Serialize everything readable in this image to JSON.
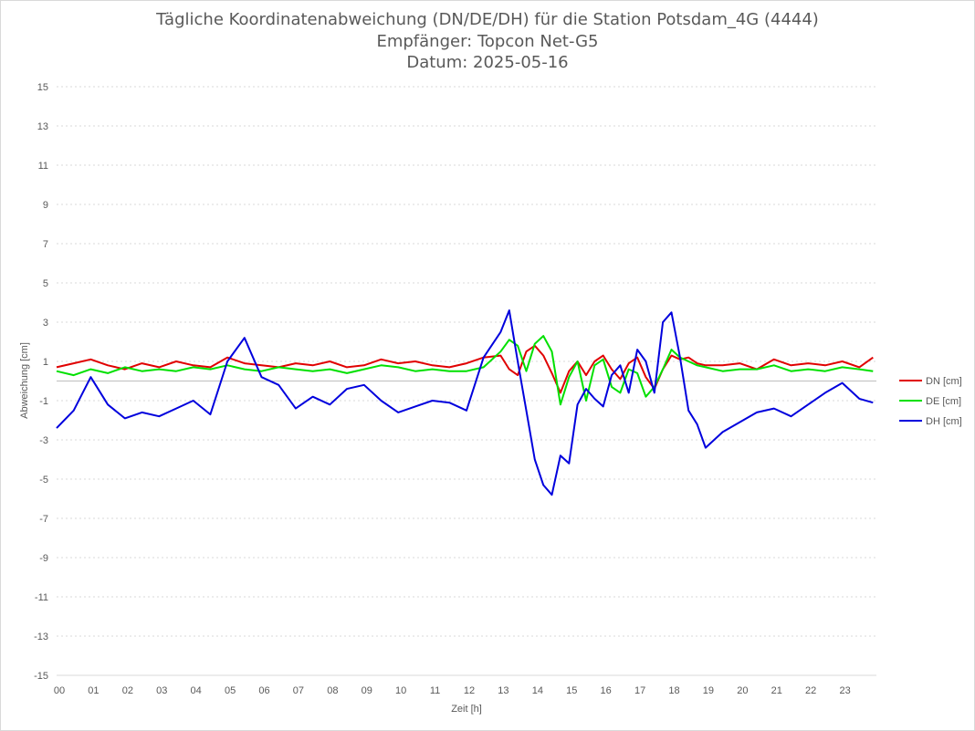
{
  "chart_data": {
    "type": "line",
    "title": "Tägliche Koordinatenabweichung (DN/DE/DH) für die Station Potsdam_4G (4444)",
    "subtitle1": "Empfänger: Topcon Net-G5",
    "subtitle2": "Datum: 2025-05-16",
    "xlabel": "Zeit [h]",
    "ylabel": "Abweichung [cm]",
    "xlim": [
      0,
      24
    ],
    "ylim": [
      -15,
      15
    ],
    "x_ticks": [
      "00",
      "01",
      "02",
      "03",
      "04",
      "05",
      "06",
      "07",
      "08",
      "09",
      "10",
      "11",
      "12",
      "13",
      "14",
      "15",
      "16",
      "17",
      "18",
      "19",
      "20",
      "21",
      "22",
      "23"
    ],
    "y_ticks": [
      15,
      13,
      11,
      9,
      7,
      5,
      3,
      1,
      -1,
      -3,
      -5,
      -7,
      -9,
      -11,
      -13,
      -15
    ],
    "grid": "horizontal dotted",
    "legend_position": "right",
    "x": [
      0,
      0.5,
      1,
      1.5,
      2,
      2.5,
      3,
      3.5,
      4,
      4.5,
      5,
      5.5,
      6,
      6.5,
      7,
      7.5,
      8,
      8.5,
      9,
      9.5,
      10,
      10.5,
      11,
      11.5,
      12,
      12.5,
      13,
      13.25,
      13.5,
      13.75,
      14,
      14.25,
      14.5,
      14.75,
      15,
      15.25,
      15.5,
      15.75,
      16,
      16.25,
      16.5,
      16.75,
      17,
      17.25,
      17.5,
      17.75,
      18,
      18.25,
      18.5,
      18.75,
      19,
      19.5,
      20,
      20.5,
      21,
      21.5,
      22,
      22.5,
      23,
      23.5,
      23.9
    ],
    "series": [
      {
        "name": "DN [cm]",
        "color": "#e00000",
        "values": [
          0.7,
          0.9,
          1.1,
          0.8,
          0.6,
          0.9,
          0.7,
          1.0,
          0.8,
          0.7,
          1.2,
          0.9,
          0.8,
          0.7,
          0.9,
          0.8,
          1.0,
          0.7,
          0.8,
          1.1,
          0.9,
          1.0,
          0.8,
          0.7,
          0.9,
          1.2,
          1.3,
          0.6,
          0.3,
          1.5,
          1.8,
          1.3,
          0.4,
          -0.6,
          0.5,
          1.0,
          0.3,
          1.0,
          1.3,
          0.6,
          0.1,
          0.9,
          1.2,
          0.2,
          -0.4,
          0.6,
          1.3,
          1.1,
          1.2,
          0.9,
          0.8,
          0.8,
          0.9,
          0.6,
          1.1,
          0.8,
          0.9,
          0.8,
          1.0,
          0.7,
          1.2
        ]
      },
      {
        "name": "DE [cm]",
        "color": "#00e000",
        "values": [
          0.5,
          0.3,
          0.6,
          0.4,
          0.7,
          0.5,
          0.6,
          0.5,
          0.7,
          0.6,
          0.8,
          0.6,
          0.5,
          0.7,
          0.6,
          0.5,
          0.6,
          0.4,
          0.6,
          0.8,
          0.7,
          0.5,
          0.6,
          0.5,
          0.5,
          0.7,
          1.5,
          2.1,
          1.8,
          0.5,
          1.9,
          2.3,
          1.5,
          -1.2,
          0.2,
          1.0,
          -1.0,
          0.8,
          1.1,
          -0.3,
          -0.6,
          0.6,
          0.4,
          -0.8,
          -0.3,
          0.6,
          1.6,
          1.2,
          1.0,
          0.8,
          0.7,
          0.5,
          0.6,
          0.6,
          0.8,
          0.5,
          0.6,
          0.5,
          0.7,
          0.6,
          0.5
        ]
      },
      {
        "name": "DH [cm]",
        "color": "#0000dd",
        "values": [
          -2.4,
          -1.5,
          0.2,
          -1.2,
          -1.9,
          -1.6,
          -1.8,
          -1.4,
          -1.0,
          -1.7,
          1.0,
          2.2,
          0.2,
          -0.2,
          -1.4,
          -0.8,
          -1.2,
          -0.4,
          -0.2,
          -1.0,
          -1.6,
          -1.3,
          -1.0,
          -1.1,
          -1.5,
          1.2,
          2.5,
          3.6,
          1.0,
          -1.5,
          -4.0,
          -5.3,
          -5.8,
          -3.8,
          -4.2,
          -1.2,
          -0.4,
          -0.9,
          -1.3,
          0.3,
          0.8,
          -0.6,
          1.6,
          1.0,
          -0.6,
          3.0,
          3.5,
          1.2,
          -1.5,
          -2.2,
          -3.4,
          -2.6,
          -2.1,
          -1.6,
          -1.4,
          -1.8,
          -1.2,
          -0.6,
          -0.1,
          -0.9,
          -1.1
        ]
      }
    ]
  }
}
